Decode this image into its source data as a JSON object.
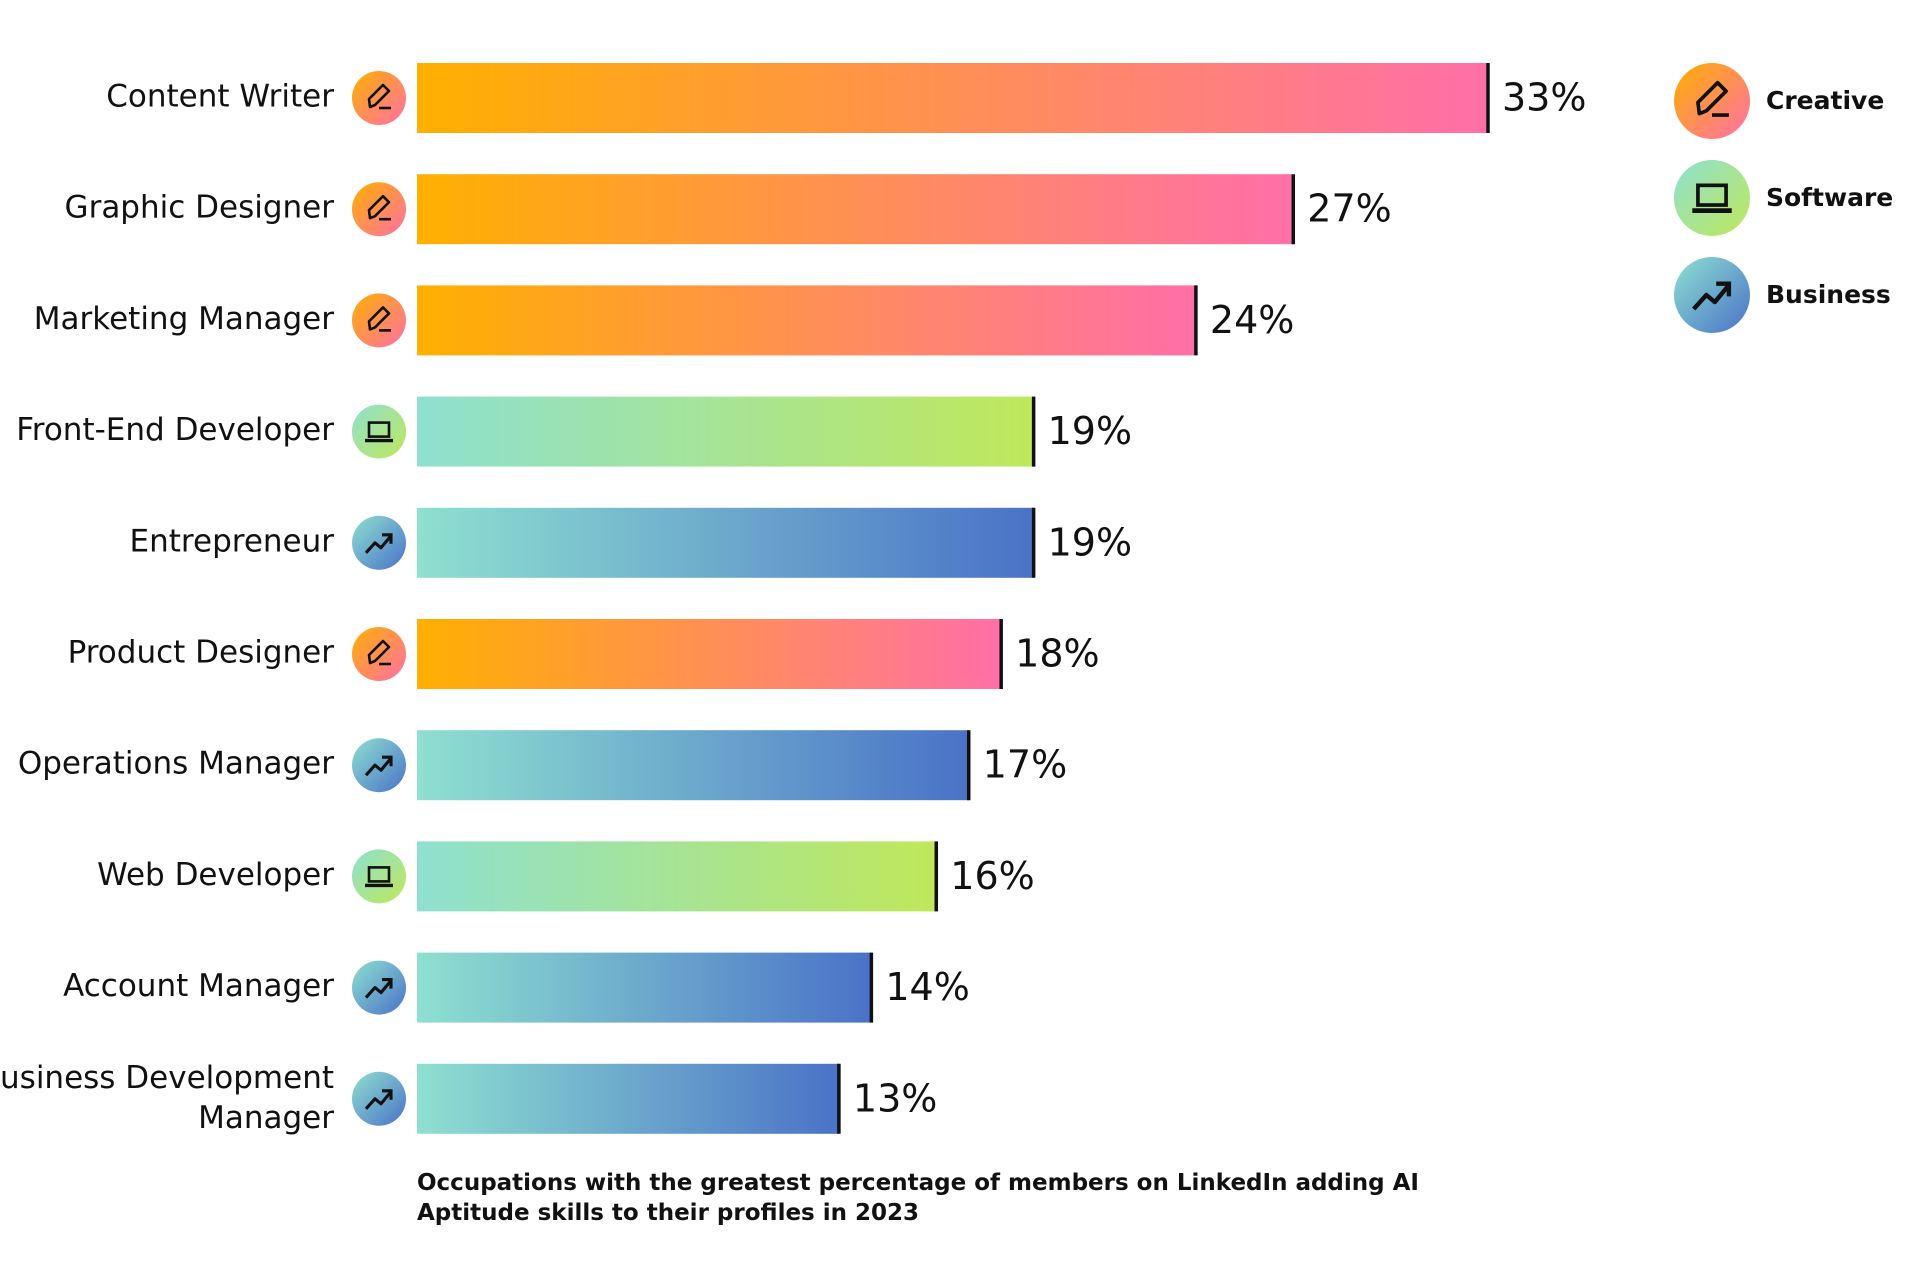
{
  "chart_data": {
    "type": "bar",
    "orientation": "horizontal",
    "title": "Occupations with the greatest percentage of members on LinkedIn adding AI Aptitude skills to their profiles in 2023",
    "categories": [
      "Content Writer",
      "Graphic Designer",
      "Marketing Manager",
      "Front-End Developer",
      "Entrepreneur",
      "Product Designer",
      "Operations Manager",
      "Web Developer",
      "Account Manager",
      "Business Development Manager"
    ],
    "series": [
      {
        "name": "Creative",
        "icon": "pencil",
        "colors": [
          "#ffb000",
          "#ff6fa8"
        ],
        "values": [
          33,
          27,
          24,
          null,
          null,
          18,
          null,
          null,
          null,
          null
        ],
        "value_labels": [
          "33%",
          "27%",
          "24%",
          null,
          null,
          "18%",
          null,
          null,
          null,
          null
        ]
      },
      {
        "name": "Software",
        "icon": "laptop",
        "colors": [
          "#8ee0d0",
          "#bfe85a"
        ],
        "values": [
          null,
          null,
          null,
          19,
          null,
          null,
          null,
          16,
          null,
          null
        ],
        "value_labels": [
          null,
          null,
          null,
          "19%",
          null,
          null,
          null,
          "16%",
          null,
          null
        ]
      },
      {
        "name": "Business",
        "icon": "trend",
        "colors": [
          "#8ee0d0",
          "#4a72c8"
        ],
        "values": [
          null,
          null,
          null,
          null,
          19,
          null,
          17,
          null,
          14,
          13
        ],
        "value_labels": [
          null,
          null,
          null,
          null,
          "19%",
          null,
          "17%",
          null,
          "14%",
          "13%"
        ]
      }
    ],
    "xlim": [
      0,
      33
    ],
    "legend": "top-right"
  }
}
